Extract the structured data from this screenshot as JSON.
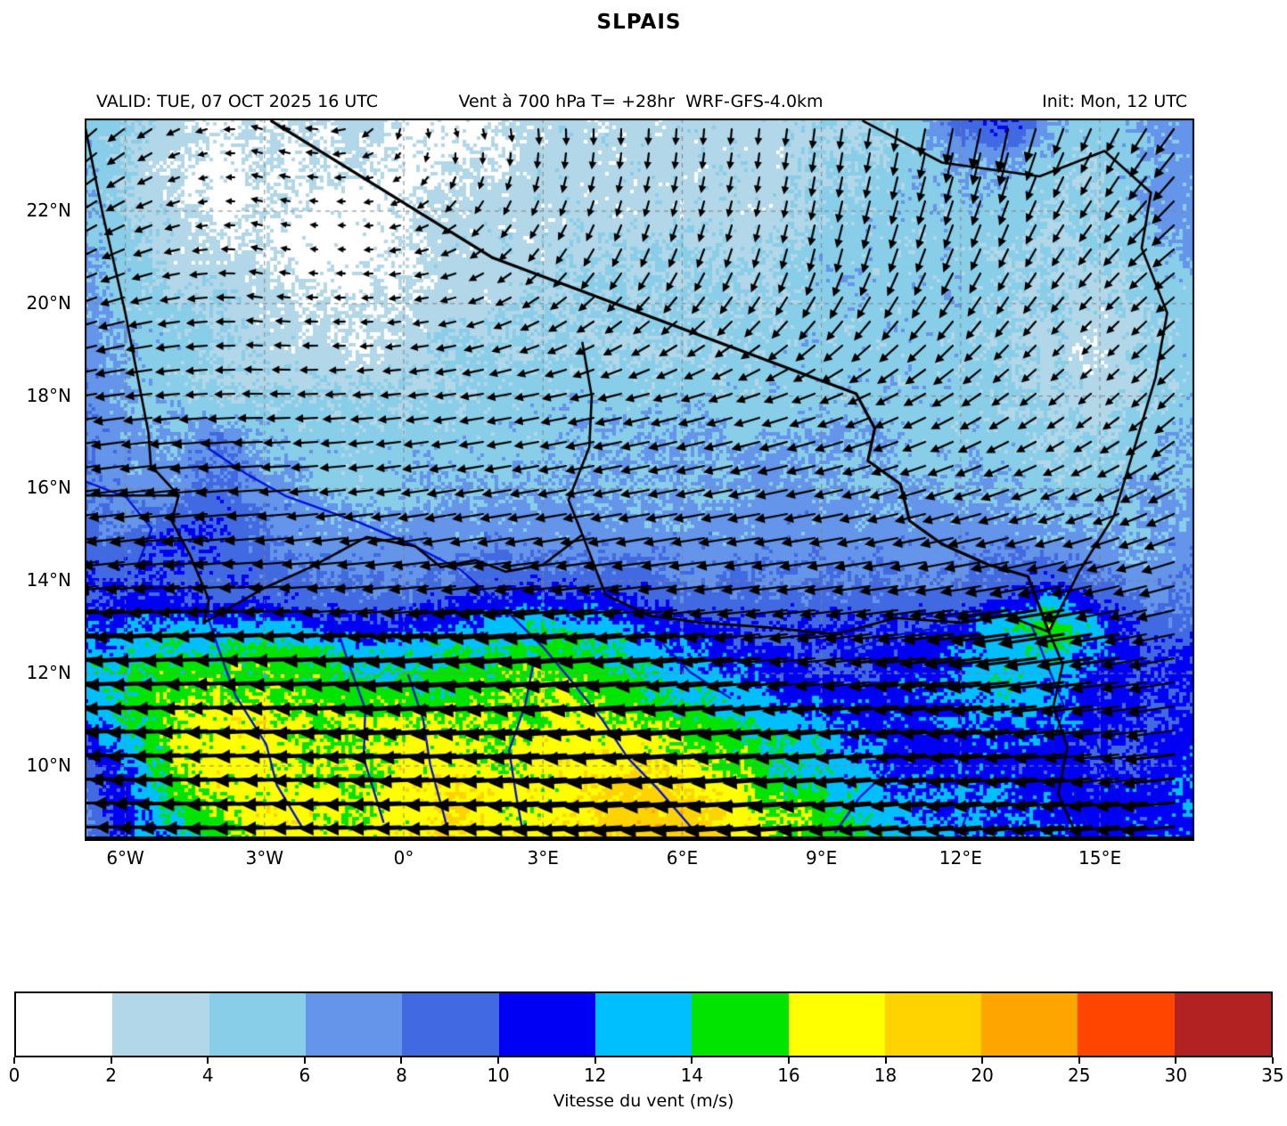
{
  "title": "SLPAIS",
  "header": {
    "valid": "VALID: TUE, 07 OCT 2025 16 UTC",
    "variable": "Vent à 700 hPa T= +28hr  WRF-GFS-4.0km",
    "init": "Init: Mon, 12 UTC"
  },
  "colorbar": {
    "label": "Vitesse du vent (m/s)",
    "tick_labels": [
      "0",
      "2",
      "4",
      "6",
      "8",
      "10",
      "12",
      "14",
      "16",
      "18",
      "20",
      "25",
      "30",
      "35"
    ],
    "colors": [
      "#ffffff",
      "#b2d7e8",
      "#89cee9",
      "#6495ea",
      "#4169e1",
      "#0000f5",
      "#00bfff",
      "#00e400",
      "#ffff00",
      "#ffd300",
      "#ffa500",
      "#ff4500",
      "#b22222"
    ]
  },
  "chart_data": {
    "type": "heatmap",
    "title": "SLPAIS",
    "xlabel": "",
    "ylabel": "",
    "units": "m/s",
    "grid": true,
    "extent": {
      "lon_min": -6.88,
      "lon_max": 17.06,
      "lat_min": 8.4,
      "lat_max": 24.0
    },
    "levels": [
      0,
      2,
      4,
      6,
      8,
      10,
      12,
      14,
      16,
      18,
      20,
      25,
      30,
      35
    ],
    "x_ticks": [
      {
        "label": "6°W",
        "lon": -6
      },
      {
        "label": "3°W",
        "lon": -3
      },
      {
        "label": "0°",
        "lon": 0
      },
      {
        "label": "3°E",
        "lon": 3
      },
      {
        "label": "6°E",
        "lon": 6
      },
      {
        "label": "9°E",
        "lon": 9
      },
      {
        "label": "12°E",
        "lon": 12
      },
      {
        "label": "15°E",
        "lon": 15
      }
    ],
    "y_ticks": [
      {
        "label": "22°N",
        "lat": 22
      },
      {
        "label": "20°N",
        "lat": 20
      },
      {
        "label": "18°N",
        "lat": 18
      },
      {
        "label": "16°N",
        "lat": 16
      },
      {
        "label": "14°N",
        "lat": 14
      },
      {
        "label": "12°N",
        "lat": 12
      },
      {
        "label": "10°N",
        "lat": 10
      }
    ],
    "speed_lons_start": -7,
    "speed_lats": [
      24,
      23,
      22,
      21,
      20,
      19,
      18,
      17,
      16,
      15,
      14,
      13.5,
      13,
      12.5,
      12,
      11.5,
      11,
      10.5,
      10,
      9.5,
      9,
      8.5
    ],
    "speed": [
      [
        6,
        4,
        3,
        2,
        2,
        2,
        3,
        2,
        1,
        2,
        3,
        3,
        3,
        3,
        3,
        3,
        4,
        4,
        5,
        9,
        11,
        6,
        5,
        6,
        7
      ],
      [
        6,
        4,
        2,
        1,
        2,
        2,
        2,
        1,
        2,
        2,
        3,
        3,
        3,
        3,
        3,
        3,
        4,
        4,
        5,
        6,
        6,
        5,
        4,
        6,
        7
      ],
      [
        6,
        4,
        3,
        1,
        2,
        1,
        1,
        2,
        3,
        3,
        3,
        3,
        3,
        3,
        3,
        3,
        4,
        5,
        5,
        5,
        5,
        4,
        4,
        6,
        7
      ],
      [
        7,
        5,
        3,
        3,
        2,
        1,
        1,
        2,
        3,
        3,
        3,
        4,
        4,
        4,
        4,
        4,
        5,
        5,
        5,
        5,
        4,
        4,
        4,
        5,
        6
      ],
      [
        7,
        5,
        4,
        4,
        3,
        2,
        2,
        2,
        3,
        3,
        4,
        4,
        4,
        4,
        4,
        4,
        5,
        5,
        5,
        5,
        4,
        4,
        3,
        4,
        5
      ],
      [
        7,
        6,
        5,
        4,
        3,
        3,
        2,
        3,
        4,
        4,
        4,
        4,
        4,
        4,
        4,
        5,
        5,
        5,
        5,
        5,
        4,
        3,
        2,
        4,
        5
      ],
      [
        8,
        6,
        5,
        4,
        4,
        4,
        4,
        4,
        4,
        5,
        5,
        5,
        5,
        5,
        5,
        5,
        5,
        5,
        5,
        5,
        4,
        4,
        3,
        4,
        5
      ],
      [
        8,
        7,
        6,
        8,
        6,
        5,
        5,
        5,
        5,
        5,
        5,
        6,
        6,
        6,
        6,
        6,
        6,
        6,
        5,
        5,
        5,
        4,
        4,
        5,
        6
      ],
      [
        8,
        7,
        7,
        9,
        7,
        6,
        5,
        5,
        6,
        6,
        6,
        6,
        6,
        6,
        6,
        7,
        6,
        6,
        6,
        6,
        6,
        5,
        5,
        6,
        6
      ],
      [
        9,
        8,
        10,
        10,
        8,
        7,
        7,
        7,
        7,
        7,
        7,
        7,
        7,
        7,
        7,
        7,
        7,
        7,
        7,
        7,
        7,
        6,
        6,
        6,
        7
      ],
      [
        10,
        10,
        10,
        9,
        9,
        8,
        8,
        8,
        8,
        9,
        9,
        9,
        9,
        8,
        8,
        8,
        8,
        8,
        8,
        8,
        9,
        10,
        8,
        7,
        8
      ],
      [
        10,
        11,
        11,
        10,
        10,
        9,
        9,
        9,
        10,
        11,
        12,
        11,
        10,
        9,
        9,
        9,
        9,
        9,
        9,
        9,
        11,
        13,
        10,
        8,
        8
      ],
      [
        11,
        12,
        13,
        12,
        13,
        12,
        11,
        11,
        12,
        13,
        14,
        13,
        12,
        11,
        10,
        10,
        10,
        10,
        10,
        11,
        13,
        16,
        12,
        9,
        9
      ],
      [
        12,
        13,
        14,
        14,
        15,
        14,
        13,
        13,
        14,
        14,
        15,
        15,
        13,
        12,
        11,
        10,
        10,
        10,
        11,
        12,
        13,
        14,
        12,
        10,
        10
      ],
      [
        13,
        14,
        15,
        15,
        15,
        15,
        14,
        14,
        15,
        15,
        16,
        15,
        14,
        13,
        12,
        11,
        10,
        10,
        11,
        12,
        14,
        13,
        11,
        10,
        10
      ],
      [
        12,
        14,
        16,
        16,
        16,
        15,
        15,
        15,
        15,
        16,
        16,
        16,
        15,
        14,
        13,
        12,
        11,
        11,
        11,
        12,
        13,
        12,
        11,
        10,
        10
      ],
      [
        12,
        14,
        16,
        17,
        17,
        16,
        16,
        16,
        16,
        16,
        16,
        17,
        16,
        15,
        14,
        13,
        12,
        11,
        11,
        12,
        12,
        12,
        11,
        10,
        11
      ],
      [
        10,
        13,
        16,
        17,
        17,
        16,
        16,
        17,
        17,
        16,
        17,
        17,
        17,
        16,
        15,
        14,
        13,
        12,
        11,
        11,
        12,
        11,
        10,
        10,
        11
      ],
      [
        9,
        12,
        16,
        17,
        17,
        16,
        16,
        17,
        17,
        16,
        17,
        17,
        18,
        17,
        16,
        14,
        13,
        12,
        11,
        11,
        11,
        11,
        10,
        10,
        12
      ],
      [
        8,
        11,
        15,
        17,
        17,
        17,
        16,
        17,
        18,
        17,
        17,
        18,
        19,
        18,
        17,
        15,
        14,
        13,
        12,
        12,
        12,
        11,
        11,
        11,
        12
      ],
      [
        7,
        11,
        14,
        16,
        17,
        17,
        16,
        17,
        18,
        17,
        17,
        18,
        19,
        19,
        18,
        16,
        15,
        13,
        12,
        12,
        12,
        11,
        11,
        11,
        12
      ],
      [
        7,
        11,
        13,
        15,
        17,
        17,
        16,
        17,
        18,
        17,
        17,
        18,
        19,
        19,
        18,
        16,
        15,
        14,
        13,
        12,
        12,
        12,
        11,
        11,
        12
      ]
    ],
    "quiver": {
      "lons": [
        -7,
        -3,
        1,
        5,
        9,
        13,
        17
      ],
      "lats": [
        24,
        21,
        18,
        15,
        13,
        11,
        9
      ],
      "u": [
        [
          -3,
          -1.5,
          0.5,
          0,
          -0.5,
          -1,
          -3
        ],
        [
          -4,
          -2,
          -1.5,
          -1.5,
          -1,
          -2,
          -4
        ],
        [
          -6,
          -4,
          -3.5,
          -4,
          -4,
          -3.5,
          -3
        ],
        [
          -8,
          -6,
          -6,
          -6,
          -6,
          -6,
          -5
        ],
        [
          -11,
          -12,
          -12,
          -11,
          -9,
          -11,
          -9
        ],
        [
          -13,
          -15,
          -15,
          -14,
          -11,
          -12,
          -10
        ],
        [
          -9,
          -16,
          -17,
          -18,
          -14,
          -11,
          -11
        ]
      ],
      "v": [
        [
          -3,
          0.5,
          -1,
          -3,
          -4,
          -5,
          -4
        ],
        [
          -2,
          0.5,
          -0.5,
          -3,
          -4,
          -4,
          -3
        ],
        [
          -1,
          0,
          -0.5,
          -1,
          -1.5,
          -2.5,
          -3
        ],
        [
          -1,
          -0.5,
          -1,
          -1,
          -1,
          -1.5,
          -2
        ],
        [
          -1,
          -0.5,
          -1,
          -1,
          -1,
          -1.5,
          -2
        ],
        [
          -0.5,
          -0.5,
          -1,
          -1,
          -1,
          -1,
          -1.5
        ],
        [
          0,
          -0.5,
          -0.5,
          -1,
          -1,
          -1,
          -1
        ]
      ]
    },
    "overlays": {
      "borders": [
        [
          [
            -6.88,
            23.9
          ],
          [
            -6.5,
            22.0
          ],
          [
            -6.0,
            19.8
          ],
          [
            -5.5,
            17.2
          ],
          [
            -5.45,
            16.5
          ],
          [
            -4.85,
            15.85
          ],
          [
            -5.0,
            15.3
          ],
          [
            -4.6,
            14.55
          ],
          [
            -4.2,
            13.6
          ],
          [
            -4.3,
            13.1
          ]
        ],
        [
          [
            -6.88,
            15.85
          ],
          [
            -4.85,
            15.85
          ]
        ],
        [
          [
            -2.85,
            23.95
          ],
          [
            1.9,
            21.0
          ],
          [
            9.75,
            18.05
          ],
          [
            10.15,
            17.3
          ],
          [
            10.0,
            16.6
          ],
          [
            10.7,
            16.1
          ],
          [
            10.9,
            15.3
          ],
          [
            11.6,
            14.8
          ],
          [
            12.6,
            14.35
          ],
          [
            13.45,
            14.1
          ],
          [
            13.9,
            12.9
          ]
        ],
        [
          [
            9.9,
            23.95
          ],
          [
            11.6,
            23.05
          ],
          [
            13.7,
            22.75
          ],
          [
            15.1,
            23.3
          ],
          [
            16.1,
            22.4
          ],
          [
            15.9,
            21.2
          ],
          [
            16.45,
            19.8
          ],
          [
            16.2,
            18.4
          ],
          [
            15.75,
            16.9
          ],
          [
            15.3,
            15.4
          ],
          [
            14.55,
            14.2
          ],
          [
            13.9,
            12.9
          ]
        ],
        [
          [
            3.85,
            19.15
          ],
          [
            4.05,
            18.0
          ],
          [
            4.0,
            16.9
          ],
          [
            3.55,
            15.75
          ],
          [
            3.85,
            15.0
          ],
          [
            3.0,
            14.35
          ],
          [
            2.2,
            14.2
          ],
          [
            1.55,
            14.45
          ],
          [
            0.8,
            14.3
          ],
          [
            0.25,
            14.75
          ],
          [
            -0.8,
            14.95
          ],
          [
            -2.0,
            14.3
          ],
          [
            -3.0,
            13.85
          ],
          [
            -4.3,
            13.1
          ]
        ],
        [
          [
            3.85,
            15.0
          ],
          [
            4.35,
            13.7
          ],
          [
            5.3,
            13.25
          ],
          [
            6.4,
            13.1
          ],
          [
            7.8,
            13.0
          ],
          [
            9.3,
            12.85
          ],
          [
            10.6,
            13.2
          ],
          [
            12.0,
            13.1
          ],
          [
            13.0,
            13.25
          ],
          [
            13.9,
            12.9
          ]
        ],
        [
          [
            13.9,
            12.9
          ],
          [
            14.2,
            12.2
          ],
          [
            14.0,
            11.3
          ],
          [
            14.3,
            10.4
          ],
          [
            14.1,
            9.4
          ],
          [
            14.5,
            8.5
          ]
        ]
      ],
      "rivers": [
        [
          [
            -4.2,
            16.9
          ],
          [
            -3.4,
            16.3
          ],
          [
            -2.5,
            15.8
          ],
          [
            -1.0,
            15.3
          ],
          [
            0.2,
            14.8
          ],
          [
            1.2,
            14.2
          ],
          [
            2.2,
            13.4
          ],
          [
            3.0,
            12.6
          ],
          [
            3.6,
            11.8
          ],
          [
            4.3,
            11.0
          ],
          [
            4.8,
            10.2
          ],
          [
            5.5,
            9.5
          ],
          [
            6.2,
            8.6
          ]
        ],
        [
          [
            -6.88,
            16.2
          ],
          [
            -6.0,
            15.8
          ],
          [
            -5.4,
            15.1
          ],
          [
            -5.8,
            14.3
          ]
        ],
        [
          [
            -4.3,
            13.5
          ],
          [
            -4.0,
            12.5
          ],
          [
            -3.6,
            11.5
          ],
          [
            -3.0,
            10.5
          ],
          [
            -2.7,
            9.6
          ],
          [
            -2.2,
            8.6
          ]
        ],
        [
          [
            -1.5,
            13.2
          ],
          [
            -1.2,
            12.2
          ],
          [
            -0.8,
            11.2
          ],
          [
            -0.9,
            10.2
          ],
          [
            -0.4,
            8.8
          ]
        ],
        [
          [
            0.1,
            12.0
          ],
          [
            0.4,
            11.0
          ],
          [
            0.6,
            10.0
          ],
          [
            0.9,
            8.7
          ]
        ],
        [
          [
            2.8,
            12.3
          ],
          [
            2.6,
            11.3
          ],
          [
            2.3,
            10.3
          ],
          [
            2.4,
            9.3
          ],
          [
            2.6,
            8.6
          ]
        ],
        [
          [
            5.2,
            13.4
          ],
          [
            5.6,
            12.6
          ],
          [
            6.2,
            12.0
          ],
          [
            7.0,
            11.5
          ]
        ],
        [
          [
            9.5,
            12.5
          ],
          [
            10.5,
            12.8
          ],
          [
            11.8,
            13.0
          ],
          [
            13.0,
            13.3
          ]
        ],
        [
          [
            14.8,
            8.6
          ],
          [
            14.4,
            9.5
          ],
          [
            14.0,
            10.4
          ],
          [
            14.2,
            11.3
          ],
          [
            13.9,
            12.2
          ],
          [
            13.5,
            13.0
          ]
        ],
        [
          [
            15.6,
            8.6
          ],
          [
            15.2,
            9.8
          ],
          [
            14.8,
            10.8
          ]
        ],
        [
          [
            9.3,
            8.6
          ],
          [
            9.8,
            9.3
          ],
          [
            10.5,
            9.9
          ]
        ],
        [
          [
            12.0,
            8.6
          ],
          [
            12.3,
            9.5
          ]
        ]
      ]
    }
  }
}
